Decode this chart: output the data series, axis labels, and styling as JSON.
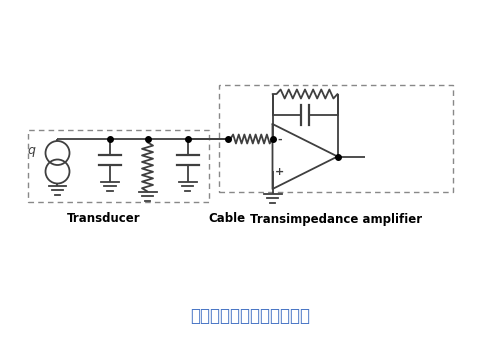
{
  "title": "压电秤重传感器换能器电路",
  "title_color": "#4472C4",
  "title_fontsize": 12,
  "bg_color": "#ffffff",
  "line_color": "#3f3f3f",
  "box_color": "#888888",
  "dot_color": "#000000",
  "label_transducer": "Transducer",
  "label_cable": "Cable",
  "label_amplifier": "Transimpedance amplifier",
  "label_q": "q",
  "label_minus": "-",
  "label_plus": "+",
  "fig_width": 5.0,
  "fig_height": 3.39,
  "dpi": 100
}
